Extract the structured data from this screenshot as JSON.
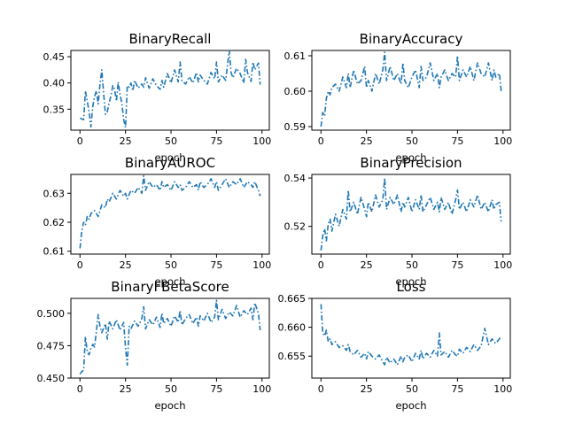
{
  "chart_data": [
    {
      "type": "line",
      "title": "BinaryRecall",
      "xlabel": "epoch",
      "ylabel": "",
      "xlim": [
        -5,
        104
      ],
      "ylim": [
        0.31,
        0.462
      ],
      "xticks": [
        0,
        25,
        50,
        75,
        100
      ],
      "yticks": [
        0.35,
        0.4,
        0.45
      ],
      "ytick_labels": [
        "0.35",
        "0.40",
        "0.45"
      ],
      "series": [
        {
          "x": [
            0,
            2,
            3,
            4,
            5,
            6,
            7,
            8,
            9,
            10,
            11,
            12,
            13,
            14,
            15,
            16,
            17,
            18,
            19,
            20,
            21,
            22,
            23,
            24,
            25,
            26,
            27,
            28,
            29,
            30,
            32,
            34,
            35,
            36,
            38,
            40,
            42,
            44,
            45,
            46,
            48,
            50,
            52,
            54,
            55,
            56,
            58,
            60,
            62,
            64,
            65,
            66,
            68,
            70,
            72,
            74,
            75,
            76,
            78,
            80,
            82,
            83,
            84,
            86,
            88,
            90,
            91,
            92,
            94,
            95,
            96,
            98,
            99
          ],
          "y": [
            0.333,
            0.33,
            0.385,
            0.365,
            0.345,
            0.316,
            0.355,
            0.374,
            0.385,
            0.36,
            0.398,
            0.425,
            0.38,
            0.34,
            0.345,
            0.362,
            0.375,
            0.395,
            0.388,
            0.365,
            0.402,
            0.378,
            0.362,
            0.33,
            0.315,
            0.395,
            0.392,
            0.4,
            0.385,
            0.405,
            0.39,
            0.398,
            0.392,
            0.41,
            0.39,
            0.408,
            0.395,
            0.388,
            0.405,
            0.392,
            0.418,
            0.4,
            0.425,
            0.402,
            0.44,
            0.404,
            0.398,
            0.412,
            0.4,
            0.42,
            0.402,
            0.415,
            0.405,
            0.398,
            0.42,
            0.408,
            0.44,
            0.402,
            0.415,
            0.405,
            0.462,
            0.42,
            0.41,
            0.428,
            0.418,
            0.4,
            0.445,
            0.42,
            0.403,
            0.44,
            0.425,
            0.438,
            0.397
          ]
        }
      ]
    },
    {
      "type": "line",
      "title": "BinaryAccuracy",
      "xlabel": "epoch",
      "ylabel": "",
      "xlim": [
        -5,
        104
      ],
      "ylim": [
        0.589,
        0.6115
      ],
      "xticks": [
        0,
        25,
        50,
        75,
        100
      ],
      "yticks": [
        0.59,
        0.6,
        0.61
      ],
      "ytick_labels": [
        "0.59",
        "0.60",
        "0.61"
      ],
      "series": [
        {
          "x": [
            0,
            1,
            2,
            3,
            4,
            5,
            6,
            8,
            10,
            12,
            14,
            15,
            16,
            18,
            20,
            22,
            24,
            25,
            26,
            28,
            30,
            32,
            34,
            35,
            36,
            38,
            40,
            42,
            44,
            45,
            46,
            48,
            50,
            52,
            54,
            55,
            56,
            58,
            60,
            62,
            64,
            65,
            66,
            68,
            70,
            72,
            74,
            75,
            76,
            78,
            80,
            82,
            84,
            86,
            88,
            90,
            92,
            94,
            95,
            96,
            98,
            99
          ],
          "y": [
            0.59,
            0.594,
            0.593,
            0.598,
            0.6,
            0.599,
            0.601,
            0.602,
            0.6,
            0.604,
            0.601,
            0.605,
            0.601,
            0.606,
            0.602,
            0.603,
            0.607,
            0.601,
            0.603,
            0.6,
            0.605,
            0.602,
            0.606,
            0.611,
            0.603,
            0.607,
            0.603,
            0.605,
            0.602,
            0.608,
            0.603,
            0.601,
            0.604,
            0.606,
            0.601,
            0.607,
            0.603,
            0.604,
            0.608,
            0.603,
            0.605,
            0.601,
            0.604,
            0.606,
            0.603,
            0.605,
            0.604,
            0.61,
            0.603,
            0.606,
            0.604,
            0.607,
            0.603,
            0.608,
            0.605,
            0.604,
            0.608,
            0.603,
            0.606,
            0.604,
            0.605,
            0.6
          ]
        }
      ]
    },
    {
      "type": "line",
      "title": "BinaryAUROC",
      "xlabel": "epoch",
      "ylabel": "",
      "xlim": [
        -5,
        104
      ],
      "ylim": [
        0.609,
        0.6365
      ],
      "xticks": [
        0,
        25,
        50,
        75,
        100
      ],
      "yticks": [
        0.61,
        0.62,
        0.63
      ],
      "ytick_labels": [
        "0.61",
        "0.62",
        "0.63"
      ],
      "series": [
        {
          "x": [
            0,
            1,
            2,
            3,
            4,
            5,
            6,
            8,
            10,
            12,
            14,
            15,
            16,
            18,
            20,
            22,
            24,
            25,
            26,
            28,
            30,
            32,
            34,
            35,
            36,
            38,
            40,
            42,
            44,
            45,
            46,
            48,
            50,
            52,
            54,
            55,
            56,
            58,
            60,
            62,
            64,
            65,
            66,
            68,
            70,
            72,
            74,
            75,
            76,
            78,
            80,
            82,
            84,
            86,
            88,
            90,
            92,
            94,
            95,
            96,
            98,
            99
          ],
          "y": [
            0.611,
            0.617,
            0.62,
            0.619,
            0.622,
            0.621,
            0.623,
            0.624,
            0.622,
            0.626,
            0.625,
            0.628,
            0.627,
            0.63,
            0.628,
            0.631,
            0.629,
            0.63,
            0.628,
            0.631,
            0.63,
            0.632,
            0.63,
            0.636,
            0.631,
            0.634,
            0.632,
            0.633,
            0.631,
            0.634,
            0.632,
            0.633,
            0.631,
            0.634,
            0.632,
            0.633,
            0.631,
            0.632,
            0.634,
            0.632,
            0.633,
            0.631,
            0.634,
            0.632,
            0.633,
            0.635,
            0.632,
            0.634,
            0.631,
            0.633,
            0.635,
            0.632,
            0.634,
            0.633,
            0.635,
            0.632,
            0.634,
            0.633,
            0.632,
            0.634,
            0.631,
            0.629
          ]
        }
      ]
    },
    {
      "type": "line",
      "title": "BinaryPrecision",
      "xlabel": "epoch",
      "ylabel": "",
      "xlim": [
        -5,
        104
      ],
      "ylim": [
        0.5085,
        0.5415
      ],
      "xticks": [
        0,
        25,
        50,
        75,
        100
      ],
      "yticks": [
        0.52,
        0.54
      ],
      "ytick_labels": [
        "0.52",
        "0.54"
      ],
      "series": [
        {
          "x": [
            0,
            1,
            2,
            3,
            4,
            5,
            6,
            8,
            10,
            12,
            14,
            15,
            16,
            18,
            20,
            22,
            24,
            25,
            26,
            28,
            30,
            32,
            34,
            35,
            36,
            38,
            40,
            42,
            44,
            45,
            46,
            48,
            50,
            52,
            54,
            55,
            56,
            58,
            60,
            62,
            64,
            65,
            66,
            68,
            70,
            72,
            74,
            75,
            76,
            78,
            80,
            82,
            84,
            86,
            88,
            90,
            92,
            94,
            95,
            96,
            98,
            99
          ],
          "y": [
            0.51,
            0.516,
            0.519,
            0.514,
            0.521,
            0.523,
            0.518,
            0.525,
            0.52,
            0.527,
            0.523,
            0.535,
            0.526,
            0.53,
            0.525,
            0.532,
            0.527,
            0.524,
            0.53,
            0.526,
            0.533,
            0.528,
            0.531,
            0.54,
            0.527,
            0.532,
            0.529,
            0.533,
            0.526,
            0.53,
            0.528,
            0.532,
            0.526,
            0.531,
            0.527,
            0.533,
            0.526,
            0.529,
            0.532,
            0.527,
            0.53,
            0.526,
            0.532,
            0.527,
            0.53,
            0.525,
            0.531,
            0.535,
            0.527,
            0.53,
            0.526,
            0.531,
            0.528,
            0.533,
            0.527,
            0.53,
            0.526,
            0.531,
            0.527,
            0.529,
            0.53,
            0.522
          ]
        }
      ]
    },
    {
      "type": "line",
      "title": "BinaryFBetaScore",
      "xlabel": "epoch",
      "ylabel": "",
      "xlim": [
        -5,
        104
      ],
      "ylim": [
        0.45,
        0.5115
      ],
      "xticks": [
        0,
        25,
        50,
        75,
        100
      ],
      "yticks": [
        0.45,
        0.475,
        0.5
      ],
      "ytick_labels": [
        "0.450",
        "0.475",
        "0.500"
      ],
      "series": [
        {
          "x": [
            0,
            1,
            2,
            3,
            4,
            5,
            6,
            7,
            8,
            9,
            10,
            11,
            12,
            14,
            15,
            16,
            18,
            20,
            22,
            24,
            25,
            26,
            27,
            28,
            30,
            32,
            34,
            35,
            36,
            38,
            40,
            42,
            44,
            45,
            46,
            48,
            50,
            52,
            54,
            55,
            56,
            58,
            60,
            62,
            64,
            65,
            66,
            68,
            70,
            72,
            74,
            75,
            76,
            78,
            80,
            82,
            84,
            86,
            88,
            90,
            92,
            94,
            95,
            96,
            98,
            99
          ],
          "y": [
            0.453,
            0.455,
            0.456,
            0.482,
            0.47,
            0.468,
            0.473,
            0.476,
            0.474,
            0.486,
            0.499,
            0.49,
            0.485,
            0.492,
            0.48,
            0.494,
            0.488,
            0.495,
            0.487,
            0.493,
            0.473,
            0.46,
            0.49,
            0.488,
            0.494,
            0.49,
            0.496,
            0.505,
            0.488,
            0.495,
            0.491,
            0.497,
            0.489,
            0.5,
            0.492,
            0.496,
            0.49,
            0.498,
            0.493,
            0.502,
            0.491,
            0.496,
            0.499,
            0.492,
            0.497,
            0.49,
            0.498,
            0.494,
            0.5,
            0.493,
            0.497,
            0.51,
            0.495,
            0.503,
            0.496,
            0.501,
            0.498,
            0.506,
            0.497,
            0.502,
            0.499,
            0.504,
            0.495,
            0.508,
            0.5,
            0.487
          ]
        }
      ]
    },
    {
      "type": "line",
      "title": "Loss",
      "xlabel": "epoch",
      "ylabel": "",
      "xlim": [
        -5,
        104
      ],
      "ylim": [
        0.6512,
        0.665
      ],
      "xticks": [
        0,
        25,
        50,
        75,
        100
      ],
      "yticks": [
        0.655,
        0.66,
        0.665
      ],
      "ytick_labels": [
        "0.655",
        "0.660",
        "0.665"
      ],
      "series": [
        {
          "x": [
            0,
            1,
            2,
            3,
            4,
            5,
            6,
            8,
            10,
            12,
            14,
            15,
            16,
            18,
            20,
            22,
            24,
            25,
            26,
            28,
            30,
            32,
            34,
            35,
            36,
            38,
            40,
            42,
            44,
            45,
            46,
            48,
            50,
            52,
            54,
            55,
            56,
            58,
            60,
            62,
            64,
            65,
            66,
            68,
            70,
            72,
            74,
            75,
            76,
            78,
            80,
            82,
            84,
            86,
            88,
            90,
            92,
            94,
            95,
            96,
            98,
            99
          ],
          "y": [
            0.664,
            0.659,
            0.6585,
            0.6595,
            0.6575,
            0.658,
            0.657,
            0.6575,
            0.6565,
            0.6568,
            0.656,
            0.657,
            0.6558,
            0.6552,
            0.656,
            0.6548,
            0.6555,
            0.6545,
            0.6558,
            0.655,
            0.6545,
            0.6552,
            0.654,
            0.6535,
            0.6548,
            0.6538,
            0.6545,
            0.6535,
            0.655,
            0.654,
            0.6548,
            0.6552,
            0.654,
            0.6555,
            0.6545,
            0.656,
            0.6545,
            0.6555,
            0.6548,
            0.656,
            0.655,
            0.659,
            0.6552,
            0.6558,
            0.6548,
            0.656,
            0.6552,
            0.655,
            0.6562,
            0.6555,
            0.6565,
            0.6558,
            0.657,
            0.656,
            0.6568,
            0.6598,
            0.657,
            0.658,
            0.6575,
            0.6572,
            0.658,
            0.6585
          ]
        }
      ]
    }
  ]
}
